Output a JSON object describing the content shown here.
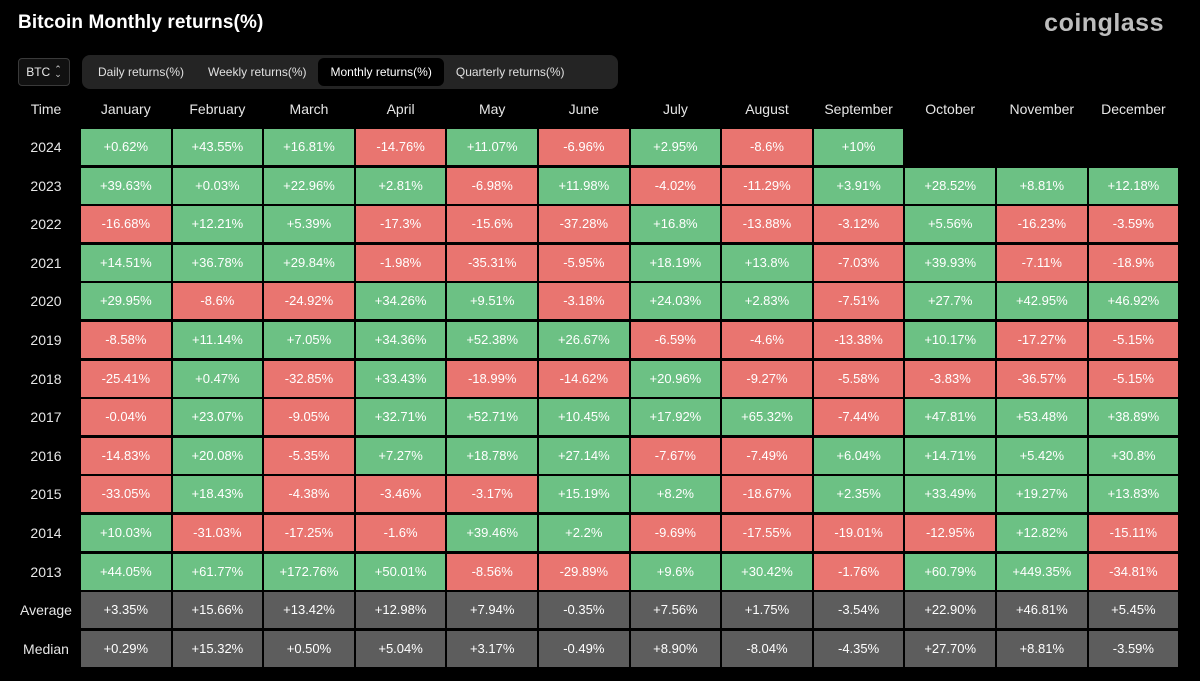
{
  "header": {
    "title": "Bitcoin Monthly returns(%)",
    "logo": "coinglass"
  },
  "controls": {
    "coin": "BTC",
    "tabs": [
      {
        "label": "Daily returns(%)",
        "active": false
      },
      {
        "label": "Weekly returns(%)",
        "active": false
      },
      {
        "label": "Monthly returns(%)",
        "active": true
      },
      {
        "label": "Quarterly returns(%)",
        "active": false
      }
    ]
  },
  "colors": {
    "positive": "#6cc184",
    "negative": "#e97570",
    "summary": "#5d5d5d"
  },
  "chart_data": {
    "type": "heatmap",
    "title": "Bitcoin Monthly returns(%)",
    "row_header": "Time",
    "columns": [
      "January",
      "February",
      "March",
      "April",
      "May",
      "June",
      "July",
      "August",
      "September",
      "October",
      "November",
      "December"
    ],
    "rows": [
      {
        "label": "2024",
        "values": [
          "+0.62%",
          "+43.55%",
          "+16.81%",
          "-14.76%",
          "+11.07%",
          "-6.96%",
          "+2.95%",
          "-8.6%",
          "+10%",
          "",
          "",
          ""
        ]
      },
      {
        "label": "2023",
        "values": [
          "+39.63%",
          "+0.03%",
          "+22.96%",
          "+2.81%",
          "-6.98%",
          "+11.98%",
          "-4.02%",
          "-11.29%",
          "+3.91%",
          "+28.52%",
          "+8.81%",
          "+12.18%"
        ]
      },
      {
        "label": "2022",
        "values": [
          "-16.68%",
          "+12.21%",
          "+5.39%",
          "-17.3%",
          "-15.6%",
          "-37.28%",
          "+16.8%",
          "-13.88%",
          "-3.12%",
          "+5.56%",
          "-16.23%",
          "-3.59%"
        ]
      },
      {
        "label": "2021",
        "values": [
          "+14.51%",
          "+36.78%",
          "+29.84%",
          "-1.98%",
          "-35.31%",
          "-5.95%",
          "+18.19%",
          "+13.8%",
          "-7.03%",
          "+39.93%",
          "-7.11%",
          "-18.9%"
        ]
      },
      {
        "label": "2020",
        "values": [
          "+29.95%",
          "-8.6%",
          "-24.92%",
          "+34.26%",
          "+9.51%",
          "-3.18%",
          "+24.03%",
          "+2.83%",
          "-7.51%",
          "+27.7%",
          "+42.95%",
          "+46.92%"
        ]
      },
      {
        "label": "2019",
        "values": [
          "-8.58%",
          "+11.14%",
          "+7.05%",
          "+34.36%",
          "+52.38%",
          "+26.67%",
          "-6.59%",
          "-4.6%",
          "-13.38%",
          "+10.17%",
          "-17.27%",
          "-5.15%"
        ]
      },
      {
        "label": "2018",
        "values": [
          "-25.41%",
          "+0.47%",
          "-32.85%",
          "+33.43%",
          "-18.99%",
          "-14.62%",
          "+20.96%",
          "-9.27%",
          "-5.58%",
          "-3.83%",
          "-36.57%",
          "-5.15%"
        ]
      },
      {
        "label": "2017",
        "values": [
          "-0.04%",
          "+23.07%",
          "-9.05%",
          "+32.71%",
          "+52.71%",
          "+10.45%",
          "+17.92%",
          "+65.32%",
          "-7.44%",
          "+47.81%",
          "+53.48%",
          "+38.89%"
        ]
      },
      {
        "label": "2016",
        "values": [
          "-14.83%",
          "+20.08%",
          "-5.35%",
          "+7.27%",
          "+18.78%",
          "+27.14%",
          "-7.67%",
          "-7.49%",
          "+6.04%",
          "+14.71%",
          "+5.42%",
          "+30.8%"
        ]
      },
      {
        "label": "2015",
        "values": [
          "-33.05%",
          "+18.43%",
          "-4.38%",
          "-3.46%",
          "-3.17%",
          "+15.19%",
          "+8.2%",
          "-18.67%",
          "+2.35%",
          "+33.49%",
          "+19.27%",
          "+13.83%"
        ]
      },
      {
        "label": "2014",
        "values": [
          "+10.03%",
          "-31.03%",
          "-17.25%",
          "-1.6%",
          "+39.46%",
          "+2.2%",
          "-9.69%",
          "-17.55%",
          "-19.01%",
          "-12.95%",
          "+12.82%",
          "-15.11%"
        ]
      },
      {
        "label": "2013",
        "values": [
          "+44.05%",
          "+61.77%",
          "+172.76%",
          "+50.01%",
          "-8.56%",
          "-29.89%",
          "+9.6%",
          "+30.42%",
          "-1.76%",
          "+60.79%",
          "+449.35%",
          "-34.81%"
        ]
      }
    ],
    "summary_rows": [
      {
        "label": "Average",
        "values": [
          "+3.35%",
          "+15.66%",
          "+13.42%",
          "+12.98%",
          "+7.94%",
          "-0.35%",
          "+7.56%",
          "+1.75%",
          "-3.54%",
          "+22.90%",
          "+46.81%",
          "+5.45%"
        ]
      },
      {
        "label": "Median",
        "values": [
          "+0.29%",
          "+15.32%",
          "+0.50%",
          "+5.04%",
          "+3.17%",
          "-0.49%",
          "+8.90%",
          "-8.04%",
          "-4.35%",
          "+27.70%",
          "+8.81%",
          "-3.59%"
        ]
      }
    ]
  }
}
